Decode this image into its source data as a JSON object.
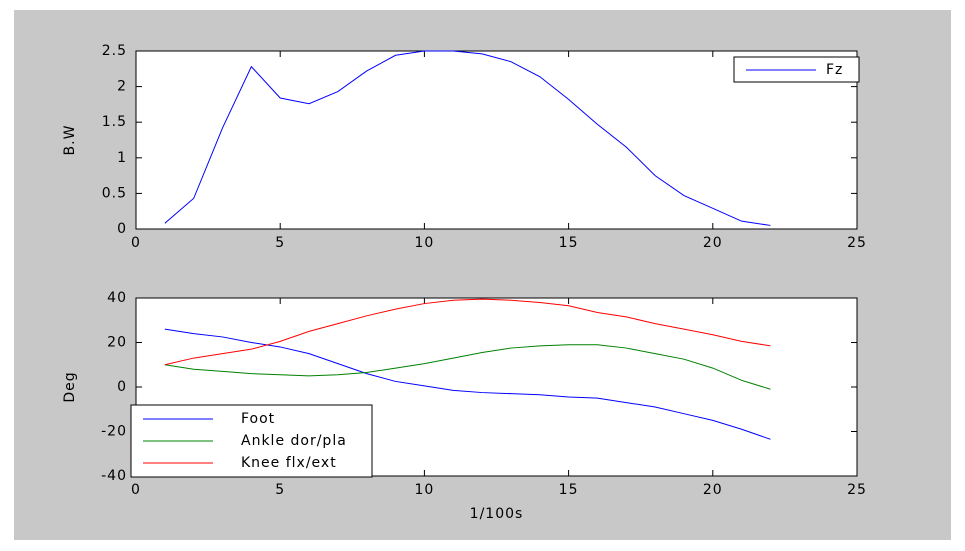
{
  "chart_data": [
    {
      "type": "line",
      "ylabel": "B.W",
      "x": [
        1,
        2,
        3,
        4,
        5,
        6,
        7,
        8,
        9,
        10,
        11,
        12,
        13,
        14,
        15,
        16,
        17,
        18,
        19,
        20,
        21,
        22
      ],
      "series": [
        {
          "name": "Fz",
          "color": "#0000ff",
          "values": [
            0.08,
            0.43,
            1.42,
            2.28,
            1.84,
            1.76,
            1.93,
            2.22,
            2.44,
            2.5,
            2.5,
            2.46,
            2.35,
            2.14,
            1.82,
            1.47,
            1.15,
            0.75,
            0.47,
            0.29,
            0.11,
            0.05
          ]
        }
      ],
      "xlim": [
        0,
        25
      ],
      "xticks": [
        0,
        5,
        10,
        15,
        20,
        25
      ],
      "ylim": [
        0,
        2.5
      ],
      "yticks": [
        0,
        0.5,
        1,
        1.5,
        2,
        2.5
      ],
      "legend": "upper right"
    },
    {
      "type": "line",
      "ylabel": "Deg",
      "xlabel": "1/100s",
      "x": [
        1,
        2,
        3,
        4,
        5,
        6,
        7,
        8,
        9,
        10,
        11,
        12,
        13,
        14,
        15,
        16,
        17,
        18,
        19,
        20,
        21,
        22
      ],
      "series": [
        {
          "name": "Foot",
          "color": "#0000ff",
          "values": [
            26,
            24,
            22.5,
            20,
            18,
            15,
            10.5,
            6,
            2.5,
            0.5,
            -1.5,
            -2.5,
            -3,
            -3.5,
            -4.5,
            -5,
            -7,
            -9,
            -12,
            -15,
            -19,
            -23.5
          ]
        },
        {
          "name": "Ankle dor/pla",
          "color": "#008000",
          "values": [
            10,
            8,
            7,
            6,
            5.5,
            5,
            5.5,
            6.5,
            8.5,
            10.5,
            13,
            15.5,
            17.5,
            18.5,
            19,
            19,
            17.5,
            15,
            12.5,
            8.5,
            3,
            -1
          ]
        },
        {
          "name": "Knee flx/ext",
          "color": "#ff0000",
          "values": [
            10,
            13,
            15,
            17,
            20.5,
            25,
            28.5,
            32,
            35,
            37.5,
            39,
            39.5,
            39,
            38,
            36.5,
            33.5,
            31.5,
            28.5,
            26,
            23.5,
            20.5,
            18.5
          ]
        }
      ],
      "xlim": [
        0,
        25
      ],
      "xticks": [
        0,
        5,
        10,
        15,
        20,
        25
      ],
      "ylim": [
        -40,
        40
      ],
      "yticks": [
        -40,
        -20,
        0,
        20,
        40
      ],
      "legend": "lower left"
    }
  ]
}
